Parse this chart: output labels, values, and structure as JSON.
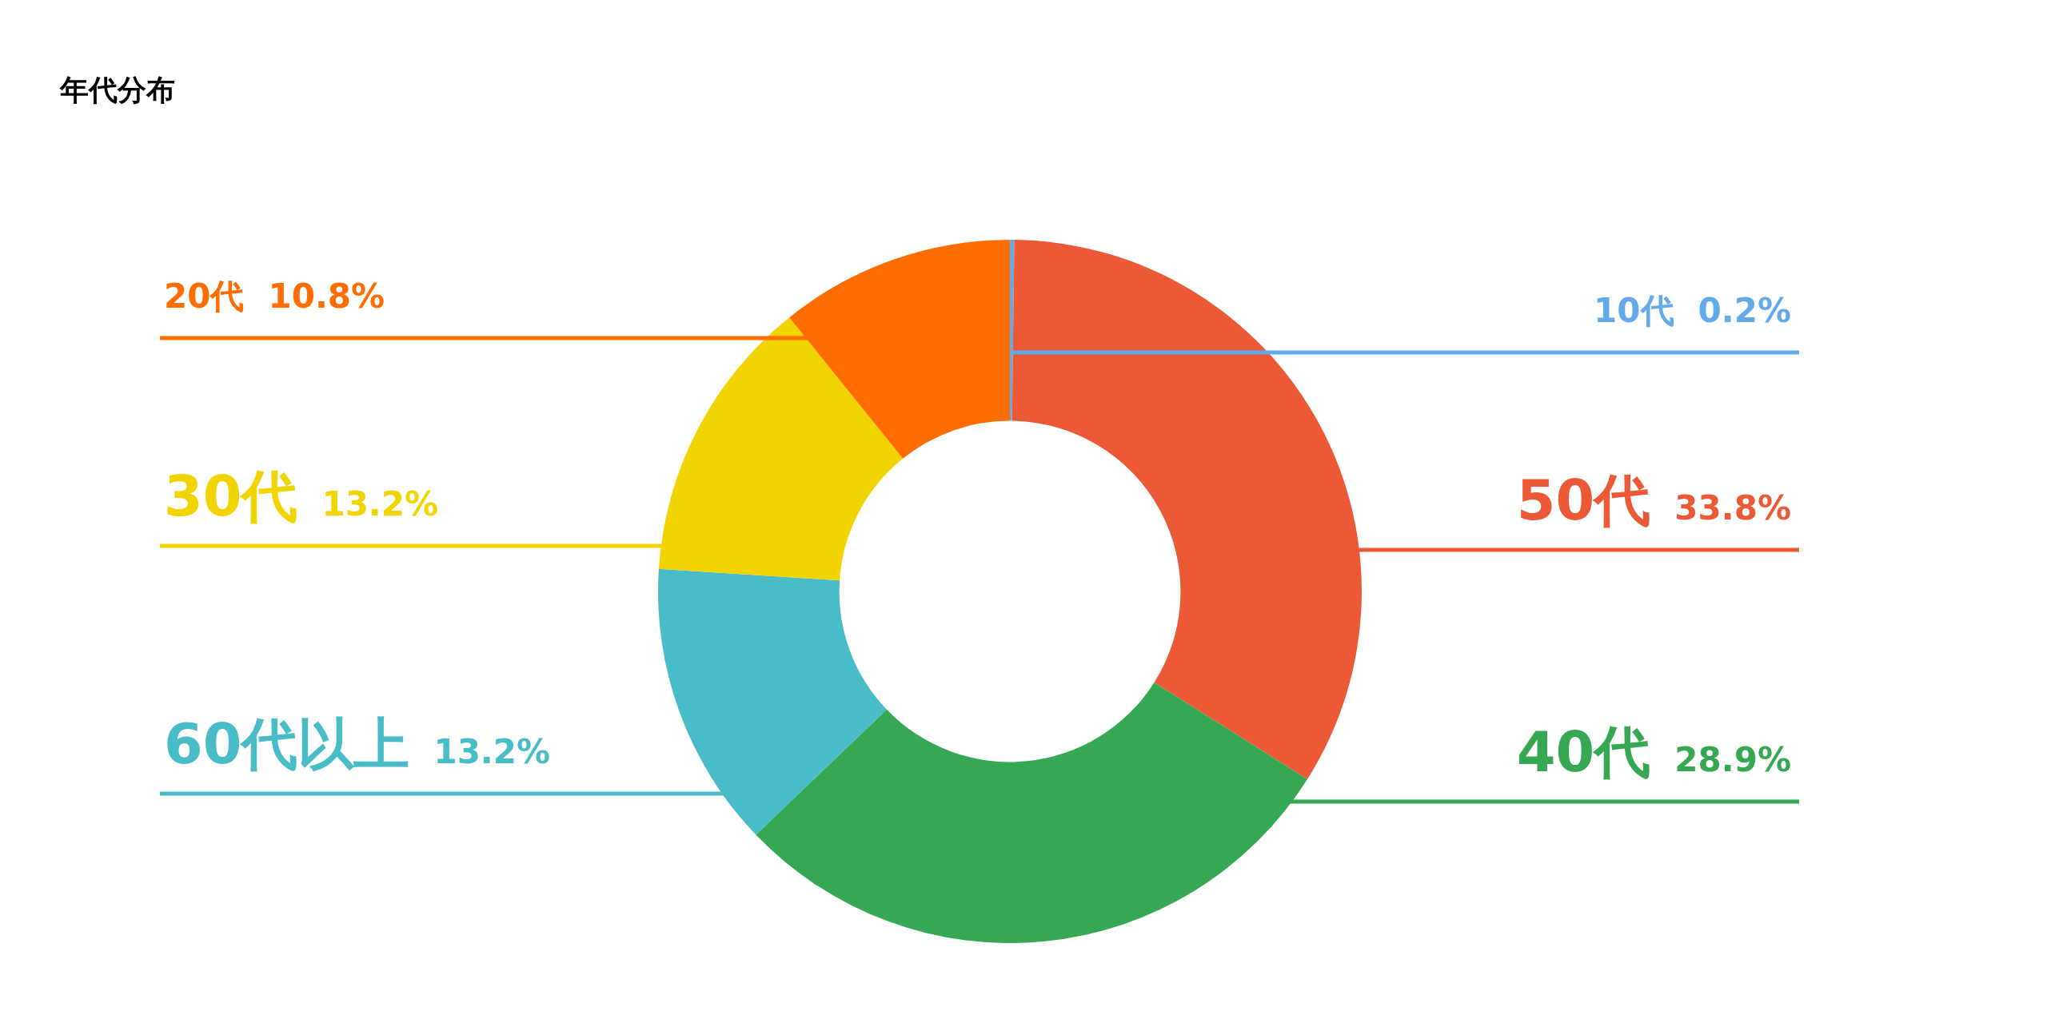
{
  "chart_data": {
    "type": "donut",
    "title": "年代分布",
    "categories": [
      "10代",
      "50代",
      "40代",
      "60代以上",
      "30代",
      "20代"
    ],
    "values": [
      0.2,
      33.8,
      28.9,
      13.2,
      13.2,
      10.8
    ],
    "colors": [
      "#62aaea",
      "#eb5937",
      "#36a853",
      "#48bcc7",
      "#f2d400",
      "#ff6c00"
    ],
    "value_labels": [
      "0.2%",
      "33.8%",
      "28.9%",
      "13.2%",
      "13.2%",
      "10.8%"
    ]
  }
}
